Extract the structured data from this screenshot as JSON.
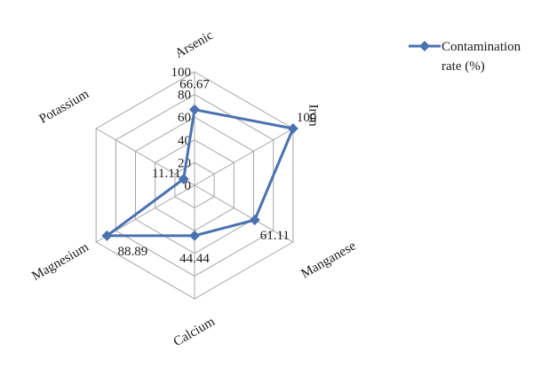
{
  "chart_data": {
    "type": "radar",
    "categories": [
      "Arsenic",
      "Iron",
      "Manganese",
      "Calcium",
      "Magnesium",
      "Potassium"
    ],
    "series": [
      {
        "name": "Contamination rate (%)",
        "values": [
          66.67,
          100,
          61.11,
          44.44,
          88.89,
          11.11
        ],
        "data_labels": [
          "66.67",
          "100",
          "61.11",
          "44.44",
          "88.89",
          "11.11"
        ],
        "color": "#4a72b0"
      }
    ],
    "rlim": [
      0,
      100
    ],
    "ticks": [
      "0",
      "20",
      "40",
      "60",
      "80",
      "100"
    ],
    "legend": {
      "line1": "Contamination",
      "line2": "rate (%)",
      "position": "top-right"
    }
  }
}
